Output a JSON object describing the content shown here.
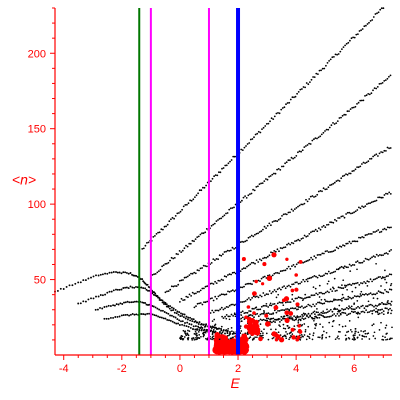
{
  "chart_data": {
    "type": "scatter",
    "title": "",
    "xlabel": "E",
    "ylabel": "<n>",
    "xlim": [
      -4.3,
      7.3
    ],
    "ylim": [
      0,
      230
    ],
    "xticks": [
      -4,
      -2,
      0,
      2,
      4,
      6
    ],
    "yticks": [
      50,
      100,
      150,
      200
    ],
    "xtick_labels": [
      "-4",
      "-2",
      "0",
      "2",
      "4",
      "6"
    ],
    "ytick_labels": [
      "50",
      "100",
      "150",
      "200"
    ],
    "grid": false,
    "legend": "none",
    "colors": {
      "axes": "#ff0000",
      "black_points": "#000000",
      "red_points": "#ff0000",
      "line_green": "#007700",
      "line_magenta": "#ff00ff",
      "line_blue": "#0000ff"
    },
    "vertical_lines": [
      {
        "x": -1.4,
        "color": "#007700",
        "width": "thin"
      },
      {
        "x": -1.0,
        "color": "#ff00ff",
        "width": "thin"
      },
      {
        "x": 1.0,
        "color": "#ff00ff",
        "width": "thin"
      },
      {
        "x": 2.0,
        "color": "#0000ff",
        "width": "thick"
      }
    ],
    "black_bands": [
      {
        "x_start": -1.3,
        "y_start": 70,
        "slope": 19.3
      },
      {
        "x_start": -1.0,
        "y_start": 52,
        "slope": 16.1
      },
      {
        "x_start": -0.5,
        "y_start": 42,
        "slope": 12.4
      },
      {
        "x_start": 0.0,
        "y_start": 36,
        "slope": 9.9
      },
      {
        "x_start": 0.5,
        "y_start": 32,
        "slope": 7.9
      },
      {
        "x_start": 1.0,
        "y_start": 28,
        "slope": 6.5
      },
      {
        "x_start": 1.5,
        "y_start": 25,
        "slope": 4.8
      },
      {
        "x_start": 2.0,
        "y_start": 24,
        "slope": 3.6
      },
      {
        "x_start": 2.5,
        "y_start": 22,
        "slope": 2.6
      },
      {
        "x_start": 3.0,
        "y_start": 22,
        "slope": 2.0
      }
    ],
    "black_arcs": [
      {
        "x": [
          -4.3,
          -3.5,
          -2.8,
          -2.2,
          -1.7,
          -1.3,
          -1.0,
          -0.7,
          -0.3,
          0.2,
          0.8,
          1.5
        ],
        "y": [
          42,
          48,
          53,
          55,
          54,
          50,
          44,
          37,
          30,
          24,
          20,
          17
        ]
      },
      {
        "x": [
          -3.5,
          -2.8,
          -2.2,
          -1.7,
          -1.2,
          -0.8,
          -0.4,
          0.1,
          0.6,
          1.2,
          1.8
        ],
        "y": [
          34,
          39,
          43,
          45,
          44,
          39,
          33,
          27,
          22,
          18,
          15
        ]
      },
      {
        "x": [
          -2.9,
          -2.3,
          -1.8,
          -1.3,
          -0.9,
          -0.4,
          0.1,
          0.7,
          1.3
        ],
        "y": [
          30,
          33,
          35,
          35,
          32,
          27,
          22,
          18,
          15
        ]
      },
      {
        "x": [
          -2.6,
          -2.0,
          -1.5,
          -1.0,
          -0.5,
          0.0,
          0.6,
          1.2,
          1.9,
          2.6
        ],
        "y": [
          24,
          26,
          27,
          27,
          24,
          20,
          17,
          15,
          14,
          14
        ]
      }
    ],
    "black_cloud": {
      "x_range": [
        0.0,
        7.3
      ],
      "y_range": [
        10,
        75
      ]
    },
    "red_cluster": {
      "x_range": [
        1.2,
        2.3
      ],
      "y_range": [
        2,
        15
      ]
    },
    "red_scatter": {
      "x_range": [
        2.2,
        4.2
      ],
      "y_range": [
        10,
        70
      ]
    }
  }
}
